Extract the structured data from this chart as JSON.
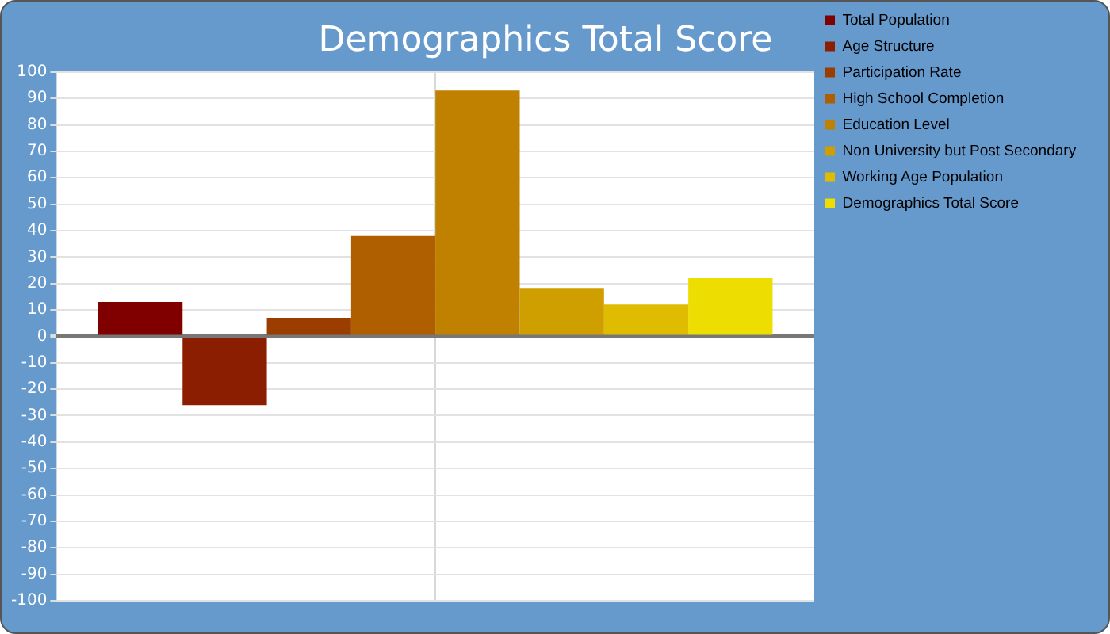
{
  "chart_data": {
    "type": "bar",
    "title": "Demographics Total Score",
    "categories": [
      null
    ],
    "series": [
      {
        "name": "Total Population",
        "color": "#800000",
        "values": [
          13
        ]
      },
      {
        "name": "Age Structure",
        "color": "#8b1e00",
        "values": [
          -26
        ]
      },
      {
        "name": "Participation Rate",
        "color": "#9c3d00",
        "values": [
          7
        ]
      },
      {
        "name": "High School Completion",
        "color": "#af5f00",
        "values": [
          38
        ]
      },
      {
        "name": "Education Level",
        "color": "#c08000",
        "values": [
          93
        ]
      },
      {
        "name": "Non University but Post Secondary",
        "color": "#cf9f00",
        "values": [
          18
        ]
      },
      {
        "name": "Working Age Population",
        "color": "#e0bc00",
        "values": [
          12
        ]
      },
      {
        "name": "Demographics Total Score",
        "color": "#eedd00",
        "values": [
          22
        ]
      }
    ],
    "ylim": [
      -100,
      100
    ],
    "yticks": [
      -100,
      -90,
      -80,
      -70,
      -60,
      -50,
      -40,
      -30,
      -20,
      -10,
      0,
      10,
      20,
      30,
      40,
      50,
      60,
      70,
      80,
      90,
      100
    ],
    "grid": true,
    "legend": "right"
  }
}
